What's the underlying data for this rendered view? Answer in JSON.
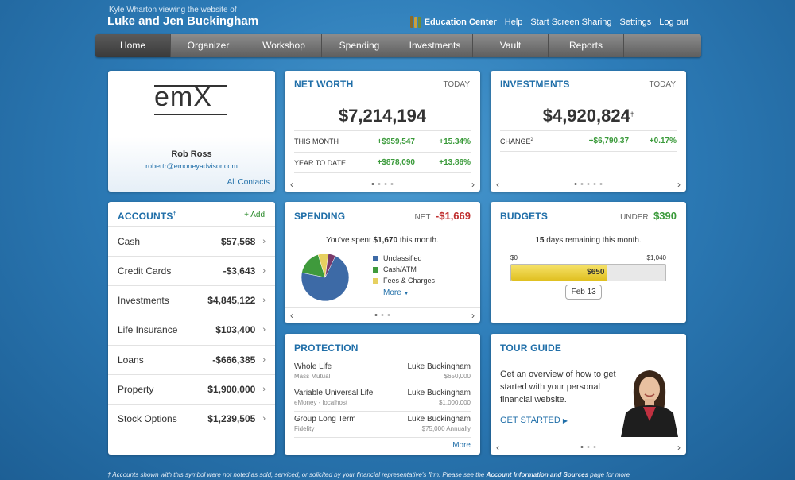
{
  "header": {
    "viewer_text": "Kyle Wharton viewing the website of",
    "client_name": "Luke and Jen Buckingham",
    "links": [
      "Education Center",
      "Help",
      "Start Screen Sharing",
      "Settings",
      "Log out"
    ]
  },
  "nav": [
    "Home",
    "Organizer",
    "Workshop",
    "Spending",
    "Investments",
    "Vault",
    "Reports"
  ],
  "contact": {
    "logo_text": "emX",
    "name": "Rob Ross",
    "email": "robertr@emoneyadvisor.com",
    "all_contacts": "All Contacts"
  },
  "net_worth": {
    "title": "NET WORTH",
    "period": "TODAY",
    "value": "$7,214,194",
    "rows": [
      {
        "label": "THIS MONTH",
        "change": "+$959,547",
        "pct": "+15.34%"
      },
      {
        "label": "YEAR TO DATE",
        "change": "+$878,090",
        "pct": "+13.86%"
      }
    ]
  },
  "investments": {
    "title": "INVESTMENTS",
    "period": "TODAY",
    "value": "$4,920,824",
    "sup": "†",
    "change_label": "CHANGE",
    "change_sup": "2",
    "change": "+$6,790.37",
    "pct": "+0.17%"
  },
  "accounts": {
    "title": "ACCOUNTS",
    "sup": "†",
    "add_label": "+ Add",
    "items": [
      {
        "label": "Cash",
        "value": "$57,568"
      },
      {
        "label": "Credit Cards",
        "value": "-$3,643"
      },
      {
        "label": "Investments",
        "value": "$4,845,122"
      },
      {
        "label": "Life Insurance",
        "value": "$103,400"
      },
      {
        "label": "Loans",
        "value": "-$666,385"
      },
      {
        "label": "Property",
        "value": "$1,900,000"
      },
      {
        "label": "Stock Options",
        "value": "$1,239,505"
      }
    ]
  },
  "spending": {
    "title": "SPENDING",
    "net_label": "NET",
    "net_value": "-$1,669",
    "summary_pre": "You've spent",
    "summary_amount": "$1,670",
    "summary_post": "this month.",
    "more_label": "More",
    "slices": [
      {
        "label": "Unclassified",
        "value": 71,
        "color": "#3d6aa6"
      },
      {
        "label": "Cash/ATM",
        "value": 17,
        "color": "#3f9a3c"
      },
      {
        "label": "Fees & Charges",
        "value": 7,
        "color": "#e6d060"
      },
      {
        "label": "",
        "value": 5,
        "color": "#7a3a6a"
      }
    ]
  },
  "budgets": {
    "title": "BUDGETS",
    "under_label": "UNDER",
    "under_value": "$390",
    "days": "15",
    "days_text": "days remaining this month.",
    "min_label": "$0",
    "max_label": "$1,040",
    "spent_label": "$650",
    "spent_fraction": 0.625,
    "marker_fraction": 0.47,
    "date_label": "Feb 13"
  },
  "protection": {
    "title": "PROTECTION",
    "more_label": "More",
    "rows": [
      {
        "policy": "Whole Life",
        "company": "Mass Mutual",
        "owner": "Luke Buckingham",
        "amount": "$650,000"
      },
      {
        "policy": "Variable Universal Life",
        "company": "eMoney - localhost",
        "owner": "Luke Buckingham",
        "amount": "$1,000,000"
      },
      {
        "policy": "Group Long Term",
        "company": "Fidelity",
        "owner": "Luke Buckingham",
        "amount": "$75,000 Annually"
      }
    ]
  },
  "tour": {
    "title": "TOUR GUIDE",
    "text": "Get an overview of how to get started with your personal financial website.",
    "cta": "GET STARTED"
  },
  "footer": {
    "text_pre": "† Accounts shown with this symbol were not noted as sold, serviced, or solicited by your financial representative's firm. Please see the",
    "link": "Account Information and Sources",
    "text_post": "page for more"
  }
}
